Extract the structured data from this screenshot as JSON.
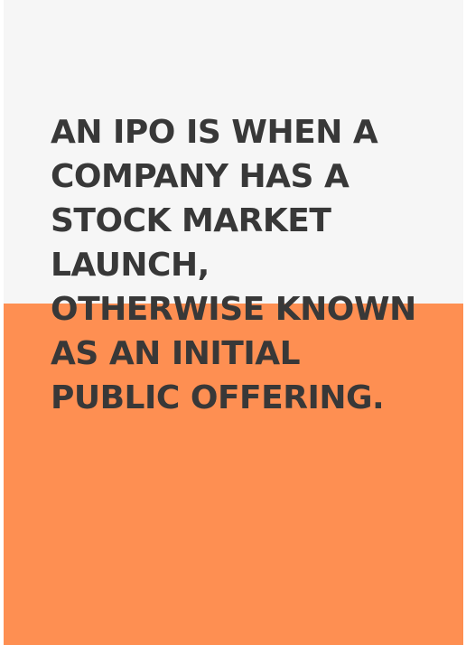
{
  "quote": {
    "lines": [
      "AN IPO IS WHEN A",
      "COMPANY HAS A",
      "STOCK MARKET",
      "LAUNCH,",
      "OTHERWISE KNOWN",
      "AS AN INITIAL",
      "PUBLIC OFFERING."
    ]
  },
  "colors": {
    "top_background": "#f6f6f6",
    "bottom_background": "#fe8f52",
    "text": "#383838"
  }
}
